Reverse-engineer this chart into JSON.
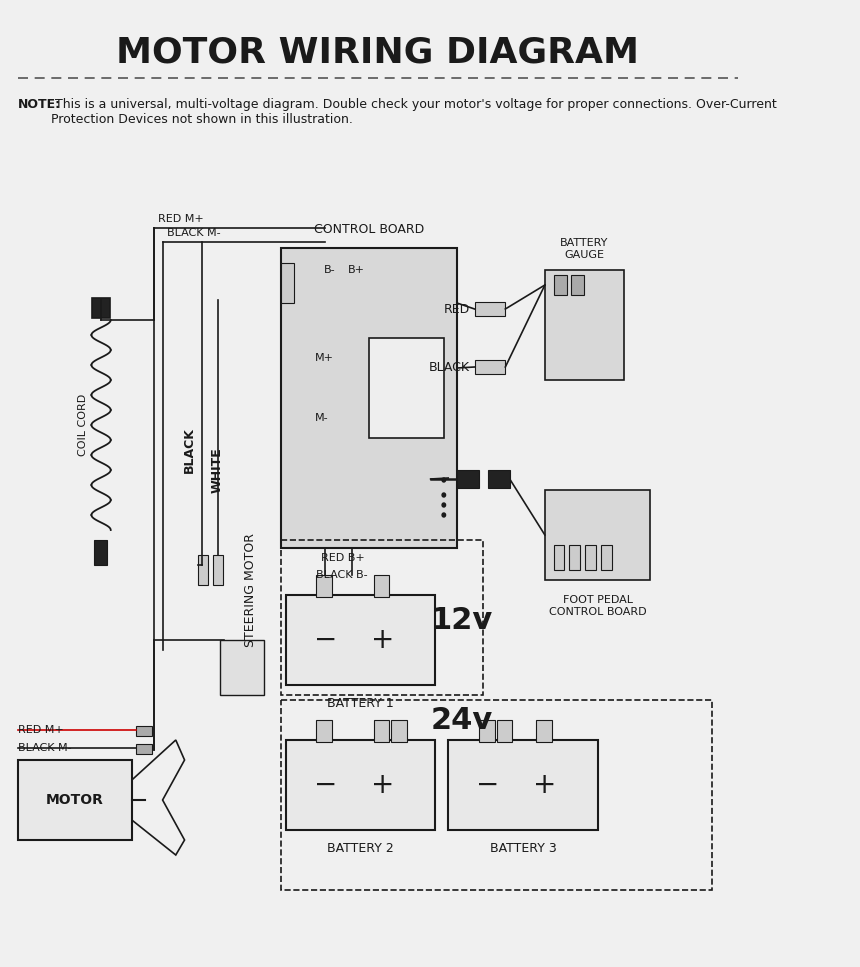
{
  "title": "MOTOR WIRING DIAGRAM",
  "bg_color": "#f0f0f0",
  "line_color": "#1a1a1a",
  "note_bold": "NOTE:",
  "note_text": " This is a universal, multi-voltage diagram. Double check your motor's voltage for proper connections. Over-Current\nProtection Devices not shown in this illustration.",
  "labels": {
    "red_m_plus": "RED M+",
    "black_m_minus": "BLACK M-",
    "control_board": "CONTROL BOARD",
    "coil_cord": "COIL CORD",
    "black_vert": "BLACK",
    "white_vert": "WHITE",
    "steering_motor": "STEERING MOTOR",
    "red_b_plus": "RED B+",
    "black_b_minus": "BLACK B-",
    "v12": "12v",
    "v24": "24v",
    "battery1": "BATTERY 1",
    "battery2": "BATTERY 2",
    "battery3": "BATTERY 3",
    "motor": "MOTOR",
    "black_m_minus2": "BLACK M-",
    "red_m_plus2": "RED M+",
    "red": "RED",
    "black": "BLACK",
    "battery_gauge": "BATTERY\nGAUGE",
    "foot_pedal": "FOOT PEDAL\nCONTROL BOARD",
    "b_minus": "B-",
    "b_plus": "B+",
    "m_plus": "M+",
    "m_minus": "M-"
  }
}
